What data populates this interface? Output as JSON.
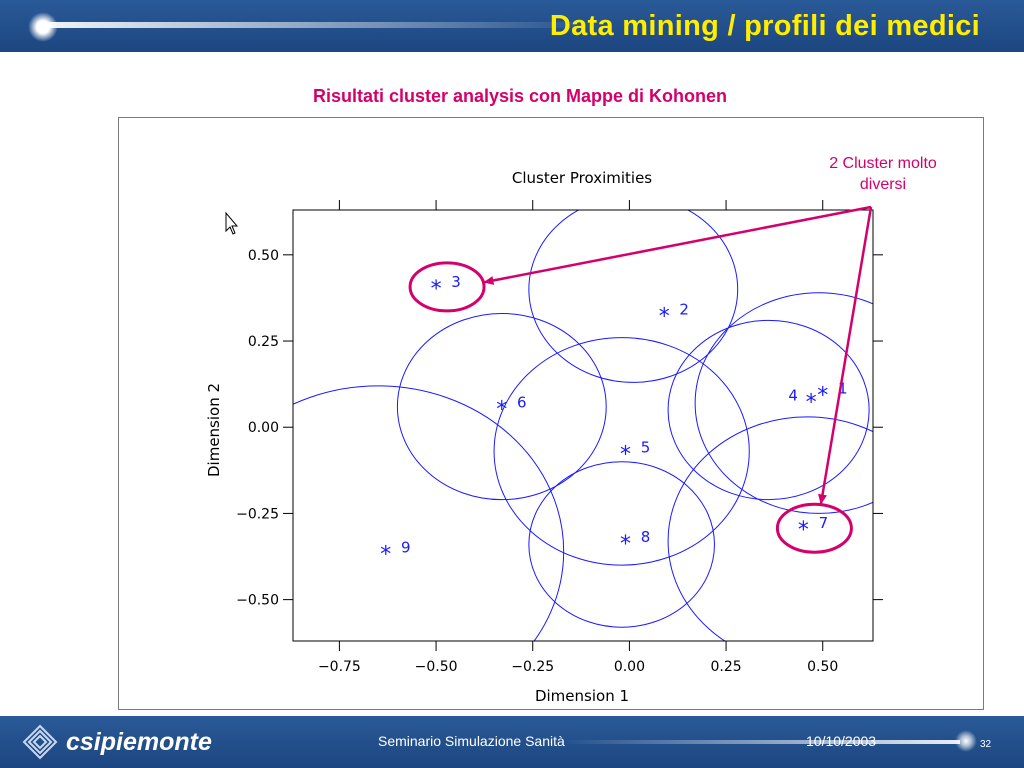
{
  "slide": {
    "title": "Data mining / profili dei medici",
    "subtitle": "Risultati cluster analysis con Mappe di Kohonen",
    "annotation": "2 Cluster molto diversi"
  },
  "footer": {
    "logo": "csipiemonte",
    "center": "Seminario Simulazione Sanità",
    "date": "10/10/2003",
    "page": "32"
  },
  "colors": {
    "header_bg": "#1f4c8a",
    "title": "#ffee00",
    "accent": "#d4006b",
    "chart_blue": "#1a1aff"
  },
  "chart_data": {
    "type": "scatter",
    "title": "Cluster Proximities",
    "xlabel": "Dimension 1",
    "ylabel": "Dimension 2",
    "xlim": [
      -0.87,
      0.63
    ],
    "ylim": [
      -0.62,
      0.63
    ],
    "xticks": [
      -0.75,
      -0.5,
      -0.25,
      0.0,
      0.25,
      0.5
    ],
    "xtick_labels": [
      "−0.75",
      "−0.50",
      "−0.25",
      "0.00",
      "0.25",
      "0.50"
    ],
    "yticks": [
      -0.5,
      -0.25,
      0.0,
      0.25,
      0.5
    ],
    "ytick_labels": [
      "−0.50",
      "−0.25",
      "0.00",
      "0.25",
      "0.50"
    ],
    "marker": "*",
    "points": [
      {
        "label": "1",
        "x": 0.5,
        "y": 0.1
      },
      {
        "label": "2",
        "x": 0.09,
        "y": 0.33
      },
      {
        "label": "3",
        "x": -0.5,
        "y": 0.41
      },
      {
        "label": "4",
        "x": 0.47,
        "y": 0.08
      },
      {
        "label": "5",
        "x": -0.01,
        "y": -0.07
      },
      {
        "label": "6",
        "x": -0.33,
        "y": 0.06
      },
      {
        "label": "7",
        "x": 0.45,
        "y": -0.29
      },
      {
        "label": "8",
        "x": -0.01,
        "y": -0.33
      },
      {
        "label": "9",
        "x": -0.63,
        "y": -0.36
      }
    ],
    "circles": [
      {
        "cx": 0.01,
        "cy": 0.4,
        "r": 0.27
      },
      {
        "cx": 0.36,
        "cy": 0.05,
        "r": 0.26
      },
      {
        "cx": 0.49,
        "cy": 0.07,
        "r": 0.32
      },
      {
        "cx": -0.33,
        "cy": 0.06,
        "r": 0.27
      },
      {
        "cx": -0.02,
        "cy": -0.07,
        "r": 0.33
      },
      {
        "cx": -0.02,
        "cy": -0.34,
        "r": 0.24
      },
      {
        "cx": 0.46,
        "cy": -0.33,
        "r": 0.36
      },
      {
        "cx": -0.65,
        "cy": -0.36,
        "r": 0.48
      }
    ],
    "highlighted_clusters": [
      "3",
      "7"
    ]
  }
}
